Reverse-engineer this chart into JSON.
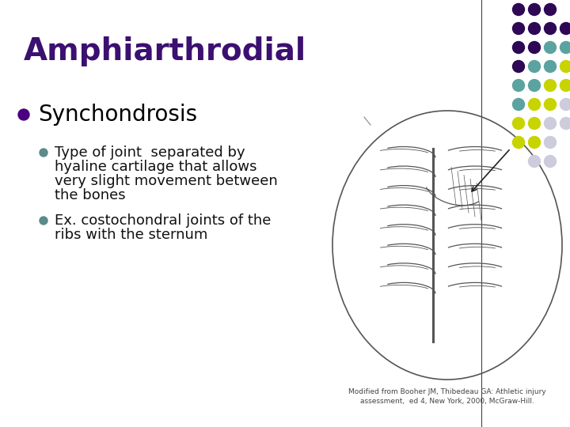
{
  "title": "Amphiarthrodial",
  "title_color": "#3B1070",
  "title_fontsize": 28,
  "title_weight": "bold",
  "background_color": "#FFFFFF",
  "bullet1": "Synchondrosis",
  "bullet1_color": "#000000",
  "bullet1_fontsize": 20,
  "bullet1_marker_color": "#4B0082",
  "sub_bullet1_lines": [
    "Type of joint  separated by",
    "hyaline cartilage that allows",
    "very slight movement between",
    "the bones"
  ],
  "sub_bullet2_lines": [
    "Ex. costochondral joints of the",
    "ribs with the sternum"
  ],
  "sub_bullet_color": "#111111",
  "sub_bullet_fontsize": 13,
  "sub_marker_color": "#5B8A8A",
  "citation": "Modified from Booher JM, Thibedeau GA: Athletic injury\nassessment,  ed 4, New York, 2000, McGraw-Hill.",
  "citation_fontsize": 6.5,
  "dot_grid": {
    "cols": 4,
    "rows": 9,
    "colors": [
      [
        "#2E0854",
        "#2E0854",
        "#2E0854",
        "#FFFFFF"
      ],
      [
        "#2E0854",
        "#2E0854",
        "#2E0854",
        "#2E0854"
      ],
      [
        "#2E0854",
        "#2E0854",
        "#5BA3A0",
        "#5BA3A0"
      ],
      [
        "#2E0854",
        "#5BA3A0",
        "#5BA3A0",
        "#C8D400"
      ],
      [
        "#5BA3A0",
        "#5BA3A0",
        "#C8D400",
        "#C8D400"
      ],
      [
        "#5BA3A0",
        "#C8D400",
        "#C8D400",
        "#CCCCDD"
      ],
      [
        "#C8D400",
        "#C8D400",
        "#CCCCDD",
        "#CCCCDD"
      ],
      [
        "#C8D400",
        "#C8D400",
        "#CCCCDD",
        "#FFFFFF"
      ],
      [
        "#FFFFFF",
        "#CCCCDD",
        "#CCCCDD",
        "#FFFFFF"
      ]
    ]
  }
}
